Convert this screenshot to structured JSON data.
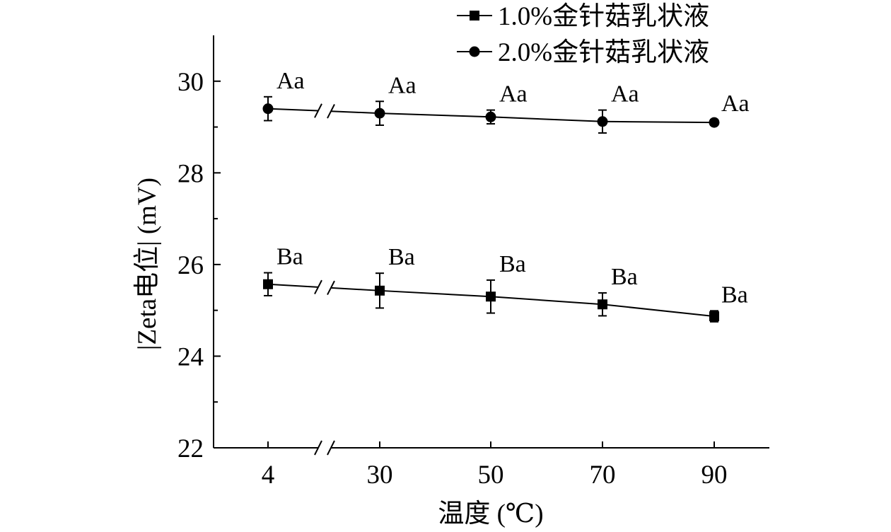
{
  "chart_data": {
    "type": "line",
    "x_categories": [
      "4",
      "30",
      "50",
      "70",
      "90"
    ],
    "x_axis_break_between": [
      "4",
      "30"
    ],
    "xlabel": "温度 (℃)",
    "ylabel": "|Zeta电位| (mV)",
    "ylim": [
      22,
      31
    ],
    "yticks": [
      "22",
      "24",
      "26",
      "28",
      "30"
    ],
    "grid": false,
    "legend_position": "top-right",
    "series": [
      {
        "name": "1.0%金针菇乳状液",
        "marker": "square",
        "values": [
          25.57,
          25.43,
          25.3,
          25.13,
          24.87
        ],
        "errors": [
          0.25,
          0.38,
          0.36,
          0.25,
          0.12
        ],
        "labels": [
          "Ba",
          "Ba",
          "Ba",
          "Ba",
          "Ba"
        ]
      },
      {
        "name": "2.0%金针菇乳状液",
        "marker": "circle",
        "values": [
          29.4,
          29.3,
          29.22,
          29.12,
          29.1
        ],
        "errors": [
          0.26,
          0.26,
          0.15,
          0.25,
          0.06
        ],
        "labels": [
          "Aa",
          "Aa",
          "Aa",
          "Aa",
          "Aa"
        ]
      }
    ]
  }
}
